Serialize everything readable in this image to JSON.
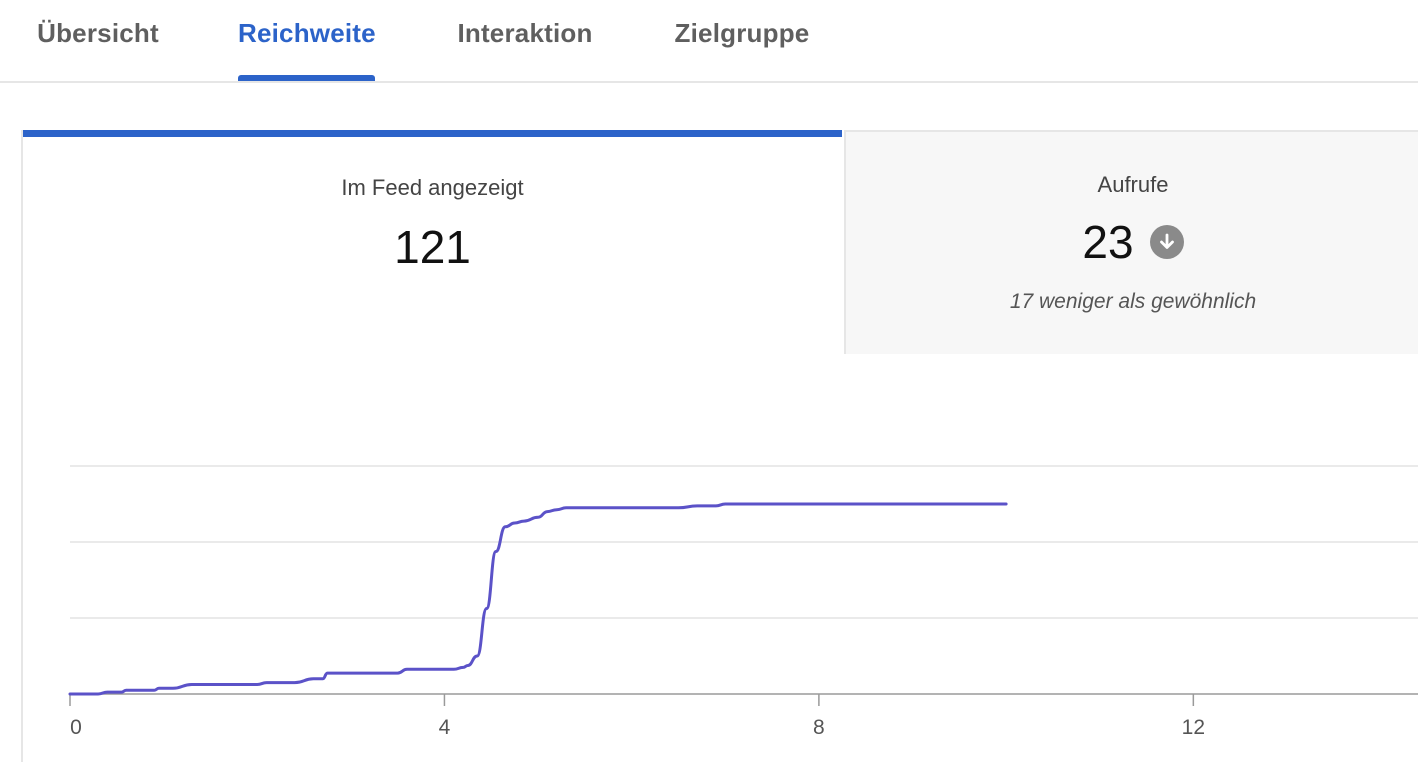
{
  "tabs": [
    {
      "label": "Übersicht"
    },
    {
      "label": "Reichweite"
    },
    {
      "label": "Interaktion"
    },
    {
      "label": "Zielgruppe"
    }
  ],
  "active_tab": "Reichweite",
  "accent_color": "#2c63c9",
  "metrics": {
    "feed": {
      "label": "Im Feed angezeigt",
      "value": "121"
    },
    "views": {
      "label": "Aufrufe",
      "value": "23",
      "trend_icon": "arrow-down-icon",
      "note": "17 weniger als gewöhnlich"
    }
  },
  "chart_data": {
    "type": "line",
    "xlabel": "",
    "ylabel": "",
    "x_ticks": [
      "0",
      "4",
      "8",
      "12"
    ],
    "xlim": [
      0,
      14.4
    ],
    "ylim": [
      0,
      120
    ],
    "grid": true,
    "line_color": "#5b52c8",
    "series": [
      {
        "x": [
          0,
          0.3,
          0.4,
          0.55,
          0.6,
          0.9,
          0.95,
          1.1,
          1.3,
          1.35,
          1.5,
          2.0,
          2.1,
          2.3,
          2.4,
          2.6,
          2.7,
          2.75,
          3.0,
          3.5,
          3.6,
          3.7,
          4.0,
          4.1,
          4.2,
          4.25,
          4.35,
          4.45,
          4.55,
          4.65,
          4.75,
          4.85,
          5.0,
          5.1,
          5.2,
          5.3,
          5.5,
          6.5,
          6.7,
          6.9,
          7.0,
          7.2,
          8.0,
          9.0,
          10.0
        ],
        "y": [
          0,
          0,
          1,
          1,
          2,
          2,
          3,
          3,
          5,
          5,
          5,
          5,
          6,
          6,
          6,
          8,
          8,
          11,
          11,
          11,
          13,
          13,
          13,
          13,
          14,
          15,
          20,
          45,
          75,
          88,
          90,
          91,
          93,
          96,
          97,
          98,
          98,
          98,
          99,
          99,
          100,
          100,
          100,
          100,
          100
        ]
      }
    ]
  }
}
